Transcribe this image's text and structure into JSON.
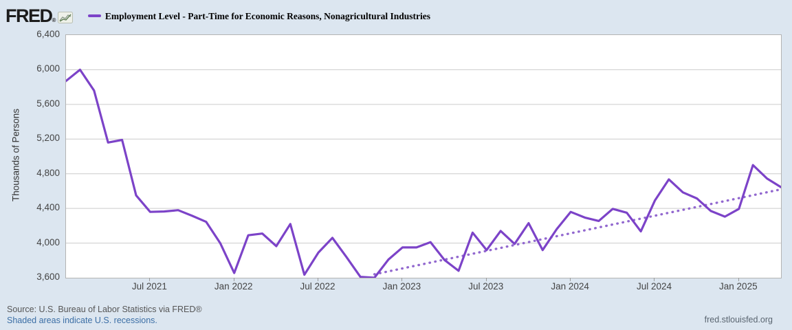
{
  "header": {
    "logo_text": "FRED",
    "logo_registered": "®",
    "series_title": "Employment Level - Part-Time for Economic Reasons, Nonagricultural Industries"
  },
  "footer": {
    "source_text": "Source: U.S. Bureau of Labor Statistics via FRED®",
    "recessions_text": "Shaded areas indicate U.S. recessions.",
    "site_text": "fred.stlouisfed.org"
  },
  "colors": {
    "background": "#dce6f0",
    "plot_background": "#ffffff",
    "gridline": "#cccccc",
    "line": "#7c43c8",
    "trend": "#9268cf",
    "tick_text": "#444444",
    "link": "#3b6ea5"
  },
  "chart_data": {
    "type": "line",
    "title": "Employment Level - Part-Time for Economic Reasons, Nonagricultural Industries",
    "ylabel": "Thousands of Persons",
    "ylim": [
      3600,
      6400
    ],
    "ytick_step": 400,
    "yticks": [
      "6,400",
      "6,000",
      "5,600",
      "5,200",
      "4,800",
      "4,400",
      "4,000",
      "3,600"
    ],
    "xticks": [
      {
        "label": "Jul 2021",
        "month_index": 6
      },
      {
        "label": "Jan 2022",
        "month_index": 12
      },
      {
        "label": "Jul 2022",
        "month_index": 18
      },
      {
        "label": "Jan 2023",
        "month_index": 24
      },
      {
        "label": "Jul 2023",
        "month_index": 30
      },
      {
        "label": "Jan 2024",
        "month_index": 36
      },
      {
        "label": "Jul 2024",
        "month_index": 42
      },
      {
        "label": "Jan 2025",
        "month_index": 48
      }
    ],
    "x_range": {
      "start": "Jan 2021",
      "end": "Apr 2025",
      "frequency": "monthly"
    },
    "grid": true,
    "legend_position": "top",
    "series": [
      {
        "name": "Employment Level - Part-Time for Economic Reasons, Nonagricultural Industries",
        "style": "solid",
        "color": "#7c43c8",
        "values": [
          5870,
          6000,
          5760,
          5160,
          5190,
          4550,
          4360,
          4365,
          4380,
          4315,
          4245,
          4000,
          3655,
          4090,
          4110,
          3965,
          4220,
          3635,
          3890,
          4060,
          3840,
          3610,
          3600,
          3810,
          3950,
          3950,
          4010,
          3805,
          3680,
          4120,
          3920,
          4140,
          3990,
          4230,
          3920,
          4160,
          4360,
          4295,
          4255,
          4395,
          4350,
          4135,
          4490,
          4735,
          4585,
          4515,
          4370,
          4305,
          4395,
          4900,
          4745,
          4645
        ]
      }
    ],
    "trend_line": {
      "style": "dotted",
      "color": "#9268cf",
      "from": {
        "month_index": 22,
        "value": 3640
      },
      "to": {
        "month_index": 51,
        "value": 4620
      }
    }
  }
}
